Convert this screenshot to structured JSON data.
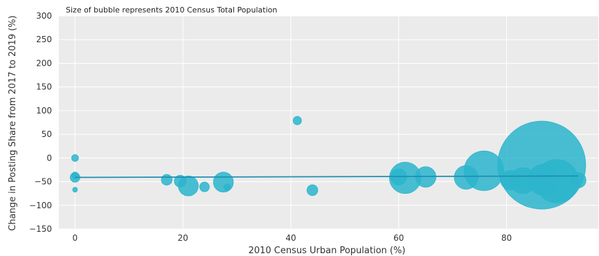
{
  "chart_data": {
    "type": "scatter",
    "subtitle": "Size of bubble represents 2010 Census Total Population",
    "xlabel": "2010 Census Urban Population (%)",
    "ylabel": "Change in Posting Share from 2017 to 2019 (%)",
    "xlim": [
      -3,
      97
    ],
    "ylim": [
      -150,
      300
    ],
    "x_ticks": [
      0,
      20,
      40,
      60,
      80
    ],
    "y_ticks": [
      -150,
      -100,
      -50,
      0,
      50,
      100,
      150,
      200,
      250,
      300
    ],
    "grid": true,
    "colors": {
      "bubble": "#2bb5cd",
      "trend": "#1f8fb3",
      "plot_bg": "#ebebeb",
      "grid": "#ffffff"
    },
    "series": [
      {
        "points": [
          {
            "x": 0,
            "y": 0,
            "size": 2
          },
          {
            "x": 0,
            "y": -37,
            "size": 2
          },
          {
            "x": 0,
            "y": -41,
            "size": 4
          },
          {
            "x": 0,
            "y": -67,
            "size": 1
          },
          {
            "x": 17,
            "y": -46,
            "size": 5
          },
          {
            "x": 19.5,
            "y": -49,
            "size": 6
          },
          {
            "x": 21,
            "y": -59,
            "size": 17
          },
          {
            "x": 24,
            "y": -61,
            "size": 4
          },
          {
            "x": 27.5,
            "y": -51,
            "size": 17
          },
          {
            "x": 28.2,
            "y": -62,
            "size": 2
          },
          {
            "x": 41.2,
            "y": 79,
            "size": 3
          },
          {
            "x": 44,
            "y": -68,
            "size": 5
          },
          {
            "x": 60,
            "y": -40,
            "size": 11
          },
          {
            "x": 61.2,
            "y": -42,
            "size": 42
          },
          {
            "x": 65,
            "y": -40,
            "size": 18
          },
          {
            "x": 72.5,
            "y": -41,
            "size": 24
          },
          {
            "x": 75.8,
            "y": -27,
            "size": 67
          },
          {
            "x": 80.7,
            "y": -47,
            "size": 16
          },
          {
            "x": 83,
            "y": -48,
            "size": 29
          },
          {
            "x": 86.5,
            "y": -15,
            "size": 330
          },
          {
            "x": 86.8,
            "y": -46,
            "size": 40
          },
          {
            "x": 89.3,
            "y": -49,
            "size": 80
          },
          {
            "x": 93.3,
            "y": -47,
            "size": 10
          }
        ]
      }
    ],
    "trendline": {
      "x": [
        0,
        93.3
      ],
      "y": [
        -41,
        -38
      ]
    }
  }
}
